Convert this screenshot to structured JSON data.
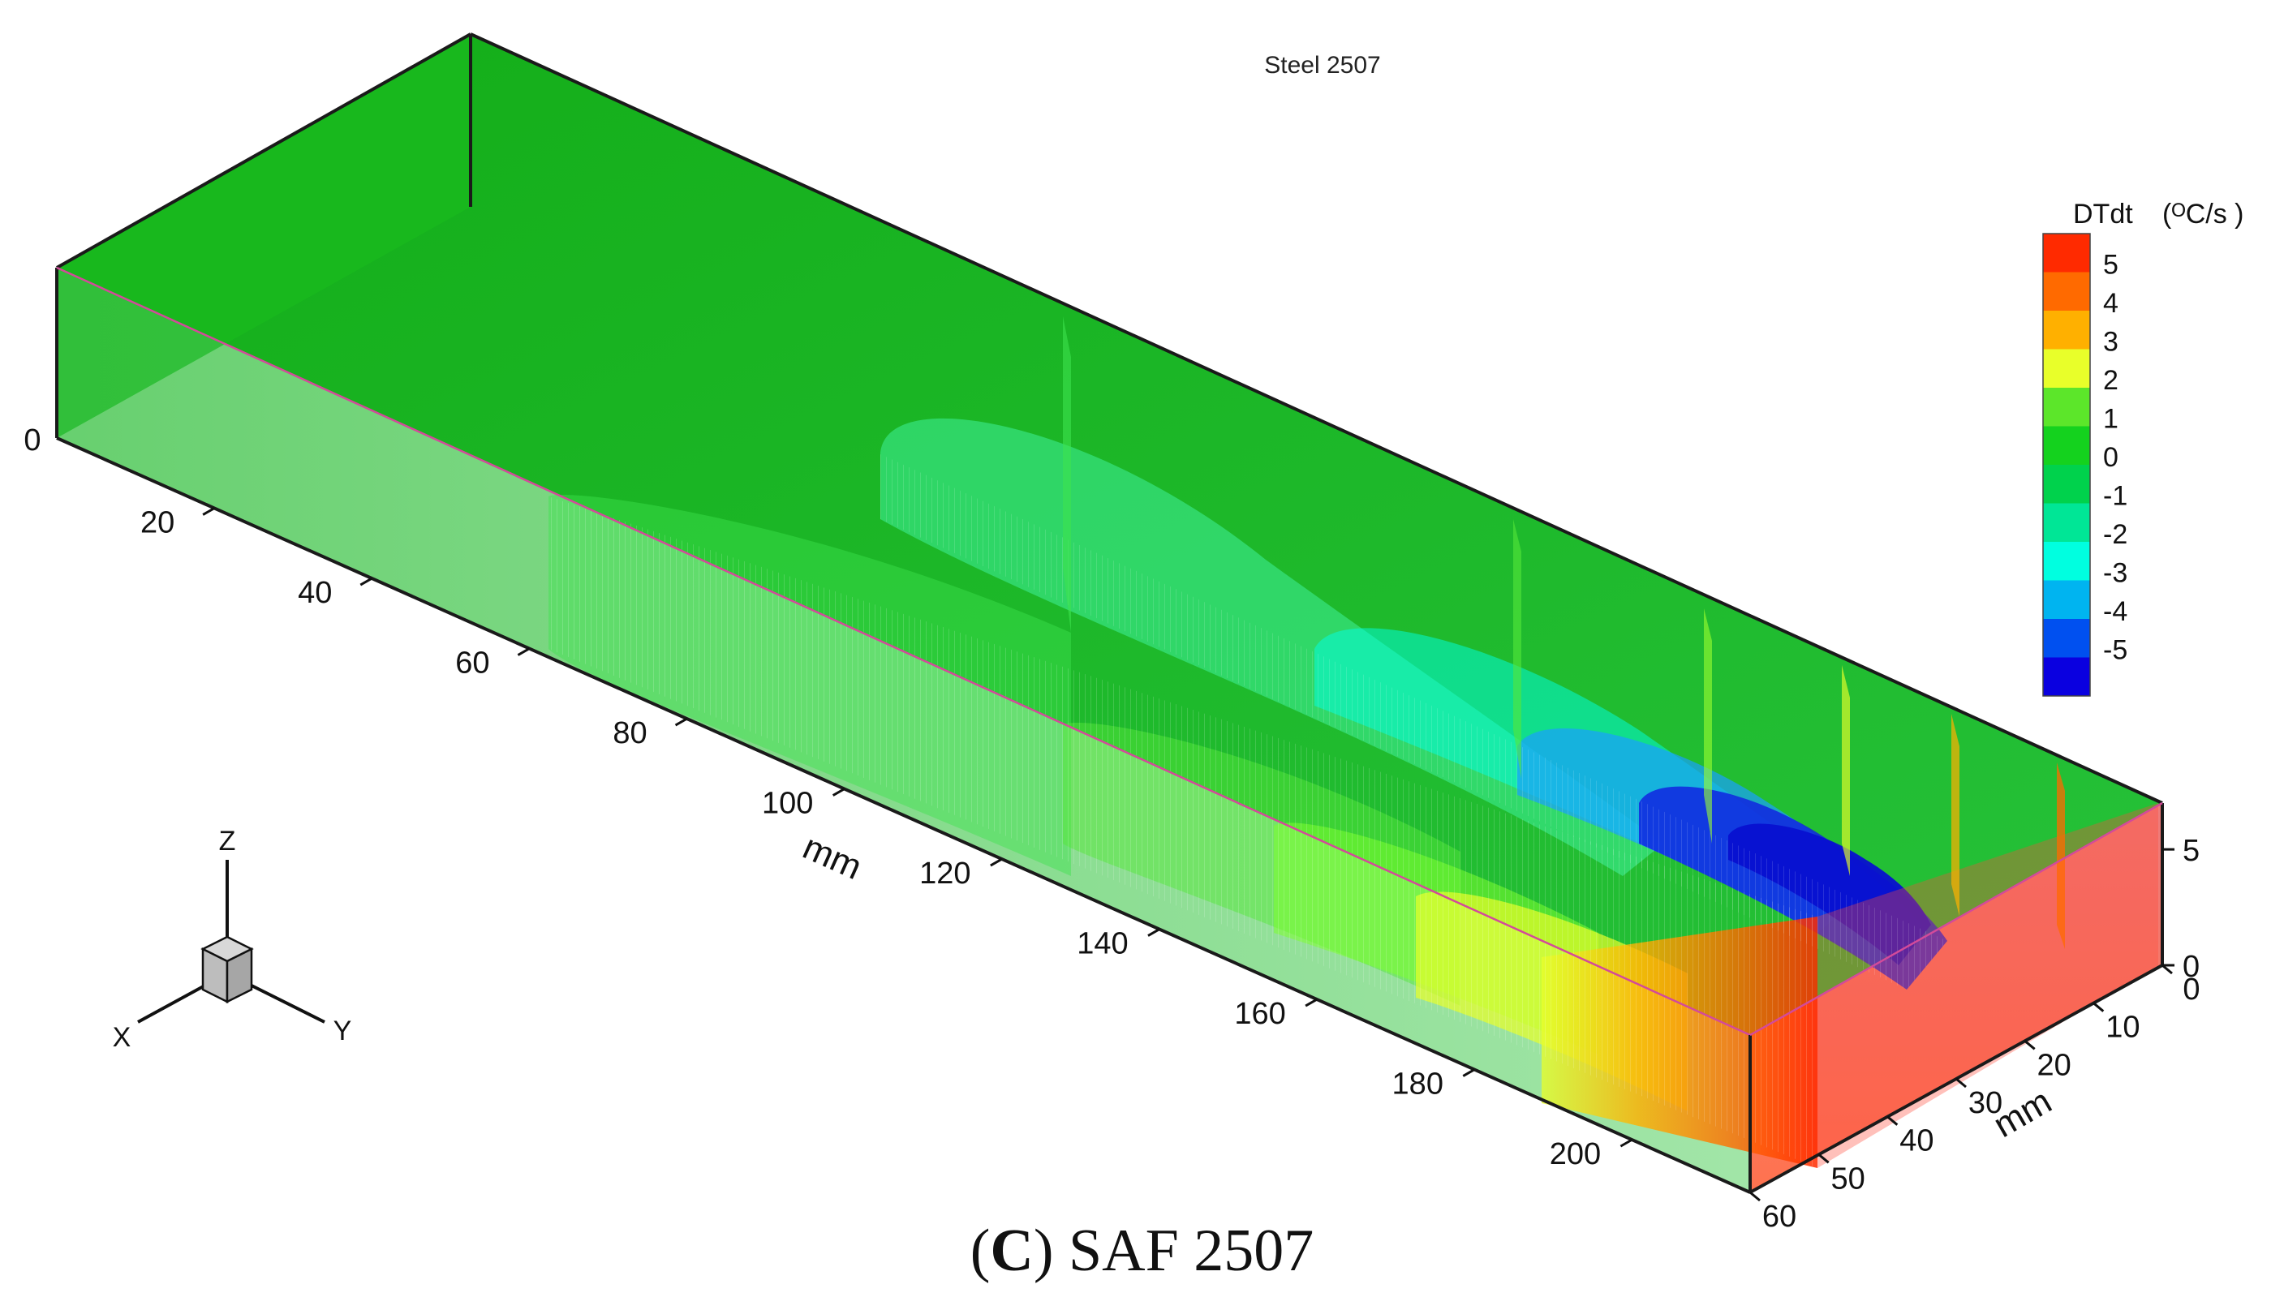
{
  "chart_data": {
    "type": "heatmap",
    "title": "Steel 2507",
    "subtitle": "",
    "view": "3D isometric box with contour iso-surfaces",
    "axes": {
      "x": {
        "label": "mm",
        "ticks": [
          20,
          40,
          60,
          80,
          100,
          120,
          140,
          160,
          180,
          200
        ],
        "range": [
          0,
          215
        ]
      },
      "y": {
        "label": "mm",
        "ticks": [
          0,
          10,
          20,
          30,
          40,
          50,
          60
        ],
        "range": [
          0,
          60
        ]
      },
      "z": {
        "label": "",
        "ticks": [
          0,
          5
        ],
        "range": [
          0,
          7
        ]
      },
      "x_origin_label": "0"
    },
    "legend": {
      "title": "DTdt",
      "unit": "(ᴼC/s )",
      "placement": "right",
      "levels": [
        {
          "value": "5",
          "color": "#ff2a00"
        },
        {
          "value": "4",
          "color": "#ff6a00"
        },
        {
          "value": "3",
          "color": "#ffb000"
        },
        {
          "value": "2",
          "color": "#e8ff2a"
        },
        {
          "value": "1",
          "color": "#5ce62a"
        },
        {
          "value": "0",
          "color": "#14d21e"
        },
        {
          "value": "-1",
          "color": "#00d24c"
        },
        {
          "value": "-2",
          "color": "#00e696"
        },
        {
          "value": "-3",
          "color": "#00ffe0"
        },
        {
          "value": "-4",
          "color": "#00b4f0"
        },
        {
          "value": "-5",
          "color": "#0050f0"
        },
        {
          "value": "",
          "color": "#0a00e0"
        }
      ]
    },
    "background_color": "#0ba80f",
    "iso_surfaces": [
      {
        "level": 0,
        "color": "#2de44a"
      },
      {
        "level": -1,
        "color": "#3ff09a"
      },
      {
        "level": -2,
        "color": "#3ff0b4"
      },
      {
        "level": -3,
        "color": "#00ffe8"
      },
      {
        "level": -4,
        "color": "#1aa0ff"
      },
      {
        "level": -5,
        "color": "#1024e0"
      },
      {
        "level": 1,
        "color": "#7dff30"
      },
      {
        "level": 2,
        "color": "#e8ff2a"
      },
      {
        "level": 3,
        "color": "#ffb000"
      },
      {
        "level": 4,
        "color": "#ff6a00"
      },
      {
        "level": 5,
        "color": "#ff2a00"
      }
    ],
    "triad": {
      "x": "X",
      "y": "Y",
      "z": "Z"
    }
  },
  "caption": {
    "prefix": "(",
    "letter": "C",
    "suffix": ") SAF 2507"
  }
}
